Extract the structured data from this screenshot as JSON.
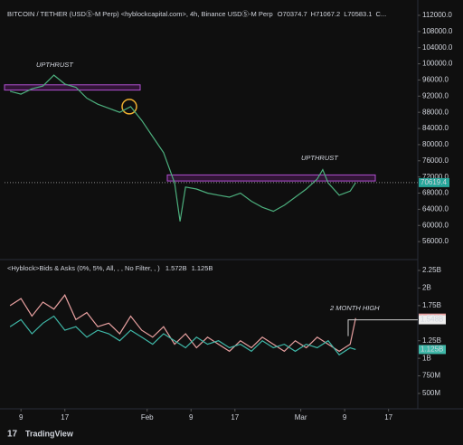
{
  "chart_data": [
    {
      "type": "line",
      "title": "BITCOIN / TETHER (USDⓈ-M Perp) <hyblockcapital.com>, 4h, Binance USDⓈ-M Perp",
      "ohlc": [
        "O70374.7",
        "H71067.2",
        "L70583.1",
        "C..."
      ],
      "x": [
        -2,
        0,
        2,
        4,
        6,
        8,
        10,
        12,
        14,
        16,
        18,
        20,
        22,
        24,
        26,
        28,
        29,
        30,
        32,
        34,
        36,
        38,
        40,
        42,
        44,
        46,
        48,
        50,
        52,
        54,
        55,
        56,
        58,
        60,
        61
      ],
      "series": [
        {
          "color": "#4caf7d",
          "values": [
            93200,
            92500,
            93800,
            94500,
            97200,
            95000,
            94200,
            91500,
            90000,
            89000,
            88000,
            89400,
            86000,
            82000,
            78000,
            70500,
            61000,
            69500,
            69000,
            68000,
            67500,
            67000,
            68000,
            66000,
            64500,
            63500,
            65000,
            67000,
            69000,
            71500,
            73800,
            70500,
            67500,
            68500,
            70600
          ]
        }
      ],
      "last_label": "70619.4",
      "annotations": [
        "UPTHRUST",
        "UPTHRUST"
      ],
      "xlim": [
        -3,
        72
      ],
      "ylim": [
        52000,
        114000
      ],
      "yticks": [
        {
          "value": 56000,
          "label": "56000.0"
        },
        {
          "value": 60000,
          "label": "60000.0"
        },
        {
          "value": 64000,
          "label": "64000.0"
        },
        {
          "value": 68000,
          "label": "68000.0"
        },
        {
          "value": 72000,
          "label": "72000.0"
        },
        {
          "value": 76000,
          "label": "76000.0"
        },
        {
          "value": 80000,
          "label": "80000.0"
        },
        {
          "value": 84000,
          "label": "84000.0"
        },
        {
          "value": 88000,
          "label": "88000.0"
        },
        {
          "value": 92000,
          "label": "92000.0"
        },
        {
          "value": 96000,
          "label": "96000.0"
        },
        {
          "value": 100000,
          "label": "100000.0"
        },
        {
          "value": 104000,
          "label": "104000.0"
        },
        {
          "value": 108000,
          "label": "108000.0"
        },
        {
          "value": 112000,
          "label": "112000.0"
        }
      ],
      "grid": false
    },
    {
      "type": "line",
      "title": "<Hyblock>Bids & Asks (0%, 5%, All, , , No Filter, , )",
      "x": [
        -2,
        0,
        2,
        4,
        6,
        8,
        10,
        12,
        14,
        16,
        18,
        20,
        22,
        24,
        26,
        28,
        30,
        32,
        34,
        36,
        38,
        40,
        42,
        44,
        46,
        48,
        50,
        52,
        54,
        56,
        58,
        60,
        61
      ],
      "series": [
        {
          "color": "#e8a0a0",
          "last_label": "1.572B",
          "values": [
            1750000000,
            1850000000,
            1600000000,
            1800000000,
            1700000000,
            1900000000,
            1550000000,
            1650000000,
            1450000000,
            1500000000,
            1350000000,
            1600000000,
            1400000000,
            1300000000,
            1450000000,
            1200000000,
            1350000000,
            1150000000,
            1300000000,
            1200000000,
            1100000000,
            1250000000,
            1150000000,
            1300000000,
            1200000000,
            1100000000,
            1250000000,
            1150000000,
            1300000000,
            1200000000,
            1100000000,
            1200000000,
            1572000000
          ]
        },
        {
          "color": "#3fb8a8",
          "last_label": "1.125B",
          "values": [
            1450000000,
            1550000000,
            1350000000,
            1500000000,
            1600000000,
            1400000000,
            1450000000,
            1300000000,
            1400000000,
            1350000000,
            1250000000,
            1400000000,
            1300000000,
            1200000000,
            1350000000,
            1250000000,
            1150000000,
            1300000000,
            1200000000,
            1250000000,
            1150000000,
            1200000000,
            1100000000,
            1250000000,
            1150000000,
            1200000000,
            1100000000,
            1200000000,
            1150000000,
            1250000000,
            1050000000,
            1150000000,
            1125000000
          ]
        }
      ],
      "annotations": [
        "2 MONTH HIGH",
        "1.548B"
      ],
      "xlim": [
        -3,
        72
      ],
      "ylim": [
        307000000,
        2366000000
      ],
      "yticks": [
        {
          "value": 500000000,
          "label": "500M"
        },
        {
          "value": 750000000,
          "label": "750M"
        },
        {
          "value": 1000000000,
          "label": "1B"
        },
        {
          "value": 1250000000,
          "label": "1.25B"
        },
        {
          "value": 1750000000,
          "label": "1.75B"
        },
        {
          "value": 2000000000,
          "label": "2B"
        },
        {
          "value": 2250000000,
          "label": "2.25B"
        }
      ],
      "xticks": [
        {
          "value": 0,
          "label": "9"
        },
        {
          "value": 8,
          "label": "17"
        },
        {
          "value": 23,
          "label": "Feb"
        },
        {
          "value": 31,
          "label": "9"
        },
        {
          "value": 39,
          "label": "17"
        },
        {
          "value": 51,
          "label": "Mar"
        },
        {
          "value": 59,
          "label": "9"
        },
        {
          "value": 67,
          "label": "17"
        }
      ],
      "grid": false
    }
  ],
  "footer": "TradingView"
}
